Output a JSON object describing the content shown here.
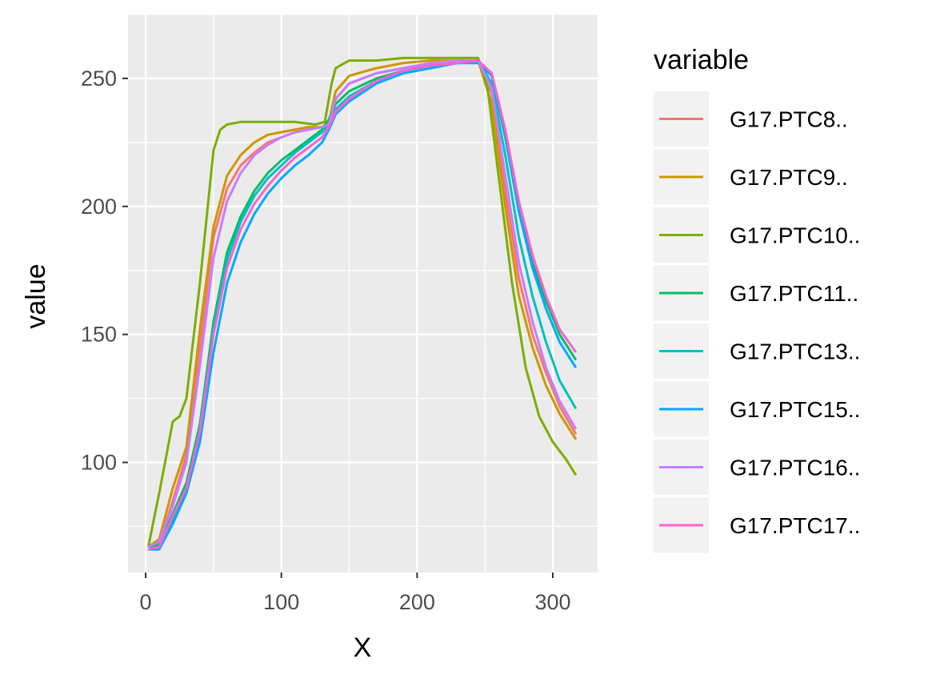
{
  "chart_data": {
    "type": "line",
    "title": "",
    "xlabel": "X",
    "ylabel": "value",
    "xlim": [
      -13,
      333
    ],
    "ylim": [
      57,
      275
    ],
    "xticks": [
      0,
      100,
      200,
      300
    ],
    "yticks": [
      100,
      150,
      200,
      250
    ],
    "grid": true,
    "legend_title": "variable",
    "legend_position": "right",
    "series": [
      {
        "name": "G17.PTC8..",
        "color": "#F8766D",
        "points": [
          [
            2,
            67
          ],
          [
            10,
            68
          ],
          [
            20,
            85
          ],
          [
            30,
            103
          ],
          [
            40,
            145
          ],
          [
            50,
            188
          ],
          [
            60,
            207
          ],
          [
            70,
            216
          ],
          [
            80,
            221
          ],
          [
            90,
            225
          ],
          [
            100,
            227
          ],
          [
            110,
            229
          ],
          [
            120,
            230
          ],
          [
            130,
            231
          ],
          [
            135,
            232
          ],
          [
            140,
            242
          ],
          [
            150,
            248
          ],
          [
            170,
            252
          ],
          [
            190,
            254
          ],
          [
            210,
            256
          ],
          [
            230,
            257
          ],
          [
            245,
            257
          ],
          [
            255,
            244
          ],
          [
            265,
            206
          ],
          [
            275,
            172
          ],
          [
            285,
            150
          ],
          [
            295,
            135
          ],
          [
            305,
            122
          ],
          [
            317,
            111
          ]
        ]
      },
      {
        "name": "G17.PTC9..",
        "color": "#CD9600",
        "points": [
          [
            2,
            67
          ],
          [
            10,
            70
          ],
          [
            20,
            90
          ],
          [
            30,
            106
          ],
          [
            40,
            152
          ],
          [
            50,
            192
          ],
          [
            60,
            212
          ],
          [
            70,
            220
          ],
          [
            80,
            225
          ],
          [
            90,
            228
          ],
          [
            100,
            229
          ],
          [
            110,
            230
          ],
          [
            120,
            231
          ],
          [
            130,
            231
          ],
          [
            135,
            233
          ],
          [
            140,
            245
          ],
          [
            150,
            251
          ],
          [
            170,
            254
          ],
          [
            190,
            256
          ],
          [
            210,
            257
          ],
          [
            230,
            257
          ],
          [
            245,
            257
          ],
          [
            255,
            240
          ],
          [
            265,
            200
          ],
          [
            275,
            165
          ],
          [
            285,
            145
          ],
          [
            295,
            130
          ],
          [
            305,
            119
          ],
          [
            317,
            109
          ]
        ]
      },
      {
        "name": "G17.PTC10..",
        "color": "#7CAE00",
        "points": [
          [
            2,
            67
          ],
          [
            10,
            88
          ],
          [
            20,
            116
          ],
          [
            25,
            118
          ],
          [
            30,
            125
          ],
          [
            40,
            170
          ],
          [
            50,
            222
          ],
          [
            55,
            230
          ],
          [
            60,
            232
          ],
          [
            70,
            233
          ],
          [
            90,
            233
          ],
          [
            110,
            233
          ],
          [
            125,
            232
          ],
          [
            132,
            233
          ],
          [
            137,
            248
          ],
          [
            140,
            254
          ],
          [
            150,
            257
          ],
          [
            170,
            257
          ],
          [
            190,
            258
          ],
          [
            210,
            258
          ],
          [
            230,
            258
          ],
          [
            245,
            258
          ],
          [
            252,
            246
          ],
          [
            260,
            212
          ],
          [
            270,
            170
          ],
          [
            280,
            137
          ],
          [
            290,
            118
          ],
          [
            300,
            108
          ],
          [
            310,
            101
          ],
          [
            317,
            95
          ]
        ]
      },
      {
        "name": "G17.PTC11..",
        "color": "#00BE67",
        "points": [
          [
            2,
            66
          ],
          [
            10,
            68
          ],
          [
            20,
            80
          ],
          [
            30,
            92
          ],
          [
            40,
            115
          ],
          [
            50,
            155
          ],
          [
            60,
            182
          ],
          [
            70,
            196
          ],
          [
            80,
            206
          ],
          [
            90,
            213
          ],
          [
            100,
            218
          ],
          [
            110,
            222
          ],
          [
            120,
            226
          ],
          [
            130,
            230
          ],
          [
            135,
            234
          ],
          [
            140,
            240
          ],
          [
            150,
            245
          ],
          [
            170,
            250
          ],
          [
            190,
            253
          ],
          [
            210,
            255
          ],
          [
            230,
            256
          ],
          [
            245,
            257
          ],
          [
            255,
            251
          ],
          [
            265,
            227
          ],
          [
            275,
            198
          ],
          [
            285,
            178
          ],
          [
            295,
            163
          ],
          [
            305,
            150
          ],
          [
            317,
            140
          ]
        ]
      },
      {
        "name": "G17.PTC13..",
        "color": "#00BFC4",
        "points": [
          [
            2,
            66
          ],
          [
            10,
            67
          ],
          [
            20,
            78
          ],
          [
            30,
            90
          ],
          [
            40,
            113
          ],
          [
            50,
            152
          ],
          [
            60,
            179
          ],
          [
            70,
            194
          ],
          [
            80,
            204
          ],
          [
            90,
            211
          ],
          [
            100,
            216
          ],
          [
            110,
            221
          ],
          [
            120,
            225
          ],
          [
            130,
            229
          ],
          [
            135,
            232
          ],
          [
            140,
            238
          ],
          [
            150,
            243
          ],
          [
            170,
            249
          ],
          [
            190,
            253
          ],
          [
            210,
            255
          ],
          [
            230,
            256
          ],
          [
            245,
            257
          ],
          [
            255,
            248
          ],
          [
            265,
            220
          ],
          [
            275,
            188
          ],
          [
            285,
            165
          ],
          [
            295,
            147
          ],
          [
            305,
            132
          ],
          [
            317,
            121
          ]
        ]
      },
      {
        "name": "G17.PTC15..",
        "color": "#00A9FF",
        "points": [
          [
            2,
            66
          ],
          [
            10,
            66
          ],
          [
            20,
            76
          ],
          [
            30,
            88
          ],
          [
            40,
            108
          ],
          [
            50,
            143
          ],
          [
            60,
            170
          ],
          [
            70,
            186
          ],
          [
            80,
            197
          ],
          [
            90,
            205
          ],
          [
            100,
            211
          ],
          [
            110,
            216
          ],
          [
            120,
            220
          ],
          [
            130,
            225
          ],
          [
            135,
            230
          ],
          [
            140,
            236
          ],
          [
            150,
            241
          ],
          [
            170,
            248
          ],
          [
            190,
            252
          ],
          [
            210,
            254
          ],
          [
            230,
            256
          ],
          [
            245,
            256
          ],
          [
            255,
            251
          ],
          [
            265,
            228
          ],
          [
            275,
            198
          ],
          [
            285,
            176
          ],
          [
            295,
            160
          ],
          [
            305,
            147
          ],
          [
            317,
            137
          ]
        ]
      },
      {
        "name": "G17.PTC16..",
        "color": "#C77CFF",
        "points": [
          [
            2,
            67
          ],
          [
            10,
            69
          ],
          [
            20,
            83
          ],
          [
            30,
            100
          ],
          [
            40,
            138
          ],
          [
            50,
            180
          ],
          [
            60,
            202
          ],
          [
            70,
            213
          ],
          [
            80,
            220
          ],
          [
            90,
            224
          ],
          [
            100,
            227
          ],
          [
            110,
            229
          ],
          [
            120,
            230
          ],
          [
            130,
            231
          ],
          [
            135,
            232
          ],
          [
            140,
            242
          ],
          [
            150,
            248
          ],
          [
            170,
            252
          ],
          [
            190,
            254
          ],
          [
            210,
            256
          ],
          [
            230,
            257
          ],
          [
            245,
            257
          ],
          [
            255,
            246
          ],
          [
            265,
            212
          ],
          [
            275,
            178
          ],
          [
            285,
            155
          ],
          [
            295,
            137
          ],
          [
            305,
            124
          ],
          [
            317,
            113
          ]
        ]
      },
      {
        "name": "G17.PTC17..",
        "color": "#FF61CC",
        "points": [
          [
            2,
            66
          ],
          [
            10,
            67
          ],
          [
            20,
            79
          ],
          [
            30,
            90
          ],
          [
            40,
            112
          ],
          [
            50,
            150
          ],
          [
            60,
            176
          ],
          [
            70,
            191
          ],
          [
            80,
            201
          ],
          [
            90,
            208
          ],
          [
            100,
            214
          ],
          [
            110,
            219
          ],
          [
            120,
            223
          ],
          [
            130,
            227
          ],
          [
            135,
            231
          ],
          [
            140,
            237
          ],
          [
            150,
            242
          ],
          [
            170,
            249
          ],
          [
            190,
            253
          ],
          [
            210,
            255
          ],
          [
            230,
            256
          ],
          [
            245,
            257
          ],
          [
            255,
            252
          ],
          [
            265,
            230
          ],
          [
            275,
            202
          ],
          [
            285,
            181
          ],
          [
            295,
            165
          ],
          [
            305,
            152
          ],
          [
            317,
            143
          ]
        ]
      }
    ]
  }
}
